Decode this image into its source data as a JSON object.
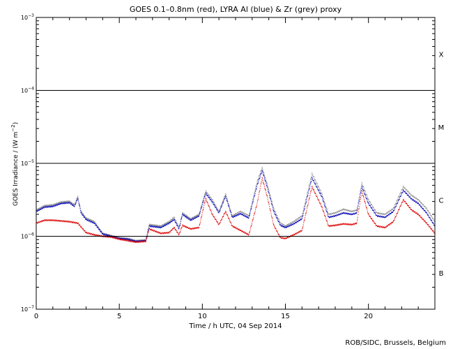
{
  "chart_data": {
    "type": "scatter",
    "title": "GOES 0.1–0.8nm (red), LYRA Al (blue) & Zr (grey) proxy",
    "xlabel": "Time / h UTC, 04 Sep 2014",
    "ylabel_main": "GOES Irradiance / (W m",
    "ylabel_sup": "−2",
    "ylabel_close": ")",
    "credit": "ROB/SIDC, Brussels, Belgium",
    "xlim": [
      0,
      24
    ],
    "ylim_log10": [
      -7,
      -3
    ],
    "x_ticks": [
      0,
      5,
      10,
      15,
      20
    ],
    "x_tick_labels": [
      "0",
      "5",
      "10",
      "15",
      "20"
    ],
    "y_ticks": [
      {
        "base": "10",
        "exp": "−3",
        "log": -3
      },
      {
        "base": "10",
        "exp": "−4",
        "log": -4
      },
      {
        "base": "10",
        "exp": "−5",
        "log": -5
      },
      {
        "base": "10",
        "exp": "−6",
        "log": -6
      },
      {
        "base": "10",
        "exp": "−7",
        "log": -7
      }
    ],
    "flare_classes": [
      {
        "label": "X",
        "log": -3.5
      },
      {
        "label": "M",
        "log": -4.5
      },
      {
        "label": "C",
        "log": -5.5
      },
      {
        "label": "B",
        "log": -6.5
      }
    ],
    "threshold_lines_log10": [
      -4,
      -5,
      -6
    ],
    "series": [
      {
        "name": "Zr proxy",
        "color": "#8c8c8c",
        "points": [
          [
            0,
            -5.64
          ],
          [
            0.5,
            -5.58
          ],
          [
            1,
            -5.57
          ],
          [
            1.5,
            -5.53
          ],
          [
            2,
            -5.52
          ],
          [
            2.3,
            -5.57
          ],
          [
            2.5,
            -5.45
          ],
          [
            2.7,
            -5.66
          ],
          [
            3,
            -5.75
          ],
          [
            3.5,
            -5.8
          ],
          [
            4,
            -5.96
          ],
          [
            4.5,
            -5.99
          ],
          [
            5,
            -6.02
          ],
          [
            5.5,
            -6.03
          ],
          [
            6,
            -6.06
          ],
          [
            6.6,
            -6.05
          ],
          [
            6.8,
            -5.84
          ],
          [
            7.5,
            -5.86
          ],
          [
            8,
            -5.8
          ],
          [
            8.3,
            -5.74
          ],
          [
            8.6,
            -5.88
          ],
          [
            8.8,
            -5.68
          ],
          [
            9.3,
            -5.76
          ],
          [
            9.8,
            -5.7
          ],
          [
            10.2,
            -5.38
          ],
          [
            10.6,
            -5.5
          ],
          [
            11,
            -5.66
          ],
          [
            11.4,
            -5.42
          ],
          [
            11.8,
            -5.72
          ],
          [
            12.3,
            -5.66
          ],
          [
            12.8,
            -5.72
          ],
          [
            13.3,
            -5.25
          ],
          [
            13.6,
            -5.06
          ],
          [
            13.9,
            -5.28
          ],
          [
            14.3,
            -5.62
          ],
          [
            14.7,
            -5.82
          ],
          [
            15,
            -5.86
          ],
          [
            15.5,
            -5.8
          ],
          [
            16,
            -5.72
          ],
          [
            16.6,
            -5.14
          ],
          [
            17.2,
            -5.42
          ],
          [
            17.6,
            -5.7
          ],
          [
            18,
            -5.68
          ],
          [
            18.5,
            -5.63
          ],
          [
            19,
            -5.66
          ],
          [
            19.3,
            -5.64
          ],
          [
            19.6,
            -5.27
          ],
          [
            20,
            -5.5
          ],
          [
            20.5,
            -5.68
          ],
          [
            21,
            -5.7
          ],
          [
            21.5,
            -5.62
          ],
          [
            22.1,
            -5.32
          ],
          [
            22.6,
            -5.44
          ],
          [
            23,
            -5.5
          ],
          [
            23.5,
            -5.62
          ],
          [
            24,
            -5.8
          ]
        ]
      },
      {
        "name": "LYRA Al proxy",
        "color": "#0000b4",
        "points": [
          [
            0,
            -5.66
          ],
          [
            0.5,
            -5.6
          ],
          [
            1,
            -5.59
          ],
          [
            1.5,
            -5.55
          ],
          [
            2,
            -5.54
          ],
          [
            2.3,
            -5.59
          ],
          [
            2.5,
            -5.48
          ],
          [
            2.7,
            -5.68
          ],
          [
            3,
            -5.77
          ],
          [
            3.5,
            -5.82
          ],
          [
            4,
            -5.97
          ],
          [
            4.5,
            -6.0
          ],
          [
            5,
            -6.03
          ],
          [
            5.5,
            -6.04
          ],
          [
            6,
            -6.07
          ],
          [
            6.6,
            -6.06
          ],
          [
            6.8,
            -5.86
          ],
          [
            7.5,
            -5.88
          ],
          [
            8,
            -5.82
          ],
          [
            8.3,
            -5.77
          ],
          [
            8.6,
            -5.9
          ],
          [
            8.8,
            -5.7
          ],
          [
            9.3,
            -5.78
          ],
          [
            9.8,
            -5.72
          ],
          [
            10.2,
            -5.41
          ],
          [
            10.6,
            -5.53
          ],
          [
            11,
            -5.68
          ],
          [
            11.4,
            -5.45
          ],
          [
            11.8,
            -5.74
          ],
          [
            12.3,
            -5.69
          ],
          [
            12.8,
            -5.75
          ],
          [
            13.3,
            -5.3
          ],
          [
            13.6,
            -5.1
          ],
          [
            13.9,
            -5.32
          ],
          [
            14.3,
            -5.66
          ],
          [
            14.7,
            -5.85
          ],
          [
            15,
            -5.88
          ],
          [
            15.5,
            -5.83
          ],
          [
            16,
            -5.76
          ],
          [
            16.6,
            -5.2
          ],
          [
            17.2,
            -5.46
          ],
          [
            17.6,
            -5.74
          ],
          [
            18,
            -5.72
          ],
          [
            18.5,
            -5.68
          ],
          [
            19,
            -5.7
          ],
          [
            19.3,
            -5.68
          ],
          [
            19.6,
            -5.32
          ],
          [
            20,
            -5.55
          ],
          [
            20.5,
            -5.72
          ],
          [
            21,
            -5.74
          ],
          [
            21.5,
            -5.66
          ],
          [
            22.1,
            -5.37
          ],
          [
            22.6,
            -5.49
          ],
          [
            23,
            -5.55
          ],
          [
            23.5,
            -5.68
          ],
          [
            24,
            -5.86
          ]
        ]
      },
      {
        "name": "GOES 0.1–0.8nm",
        "color": "#dc0000",
        "points": [
          [
            0,
            -5.82
          ],
          [
            0.5,
            -5.78
          ],
          [
            1,
            -5.78
          ],
          [
            1.5,
            -5.79
          ],
          [
            2,
            -5.8
          ],
          [
            2.5,
            -5.82
          ],
          [
            3,
            -5.95
          ],
          [
            3.5,
            -5.98
          ],
          [
            4,
            -6.0
          ],
          [
            4.5,
            -6.01
          ],
          [
            5,
            -6.04
          ],
          [
            5.5,
            -6.06
          ],
          [
            6,
            -6.08
          ],
          [
            6.6,
            -6.07
          ],
          [
            6.8,
            -5.9
          ],
          [
            7.5,
            -5.96
          ],
          [
            8,
            -5.95
          ],
          [
            8.3,
            -5.88
          ],
          [
            8.6,
            -5.98
          ],
          [
            8.8,
            -5.85
          ],
          [
            9.3,
            -5.9
          ],
          [
            9.8,
            -5.88
          ],
          [
            10.2,
            -5.48
          ],
          [
            10.6,
            -5.7
          ],
          [
            11,
            -5.84
          ],
          [
            11.4,
            -5.66
          ],
          [
            11.8,
            -5.86
          ],
          [
            12.3,
            -5.92
          ],
          [
            12.8,
            -5.98
          ],
          [
            13.3,
            -5.55
          ],
          [
            13.6,
            -5.2
          ],
          [
            13.9,
            -5.45
          ],
          [
            14.3,
            -5.85
          ],
          [
            14.7,
            -6.02
          ],
          [
            15,
            -6.03
          ],
          [
            15.5,
            -5.98
          ],
          [
            16,
            -5.92
          ],
          [
            16.6,
            -5.32
          ],
          [
            17.2,
            -5.6
          ],
          [
            17.6,
            -5.86
          ],
          [
            18,
            -5.85
          ],
          [
            18.5,
            -5.83
          ],
          [
            19,
            -5.84
          ],
          [
            19.3,
            -5.82
          ],
          [
            19.6,
            -5.38
          ],
          [
            20,
            -5.7
          ],
          [
            20.5,
            -5.86
          ],
          [
            21,
            -5.88
          ],
          [
            21.5,
            -5.8
          ],
          [
            22.1,
            -5.5
          ],
          [
            22.6,
            -5.64
          ],
          [
            23,
            -5.7
          ],
          [
            23.5,
            -5.82
          ],
          [
            24,
            -5.96
          ]
        ]
      }
    ]
  }
}
